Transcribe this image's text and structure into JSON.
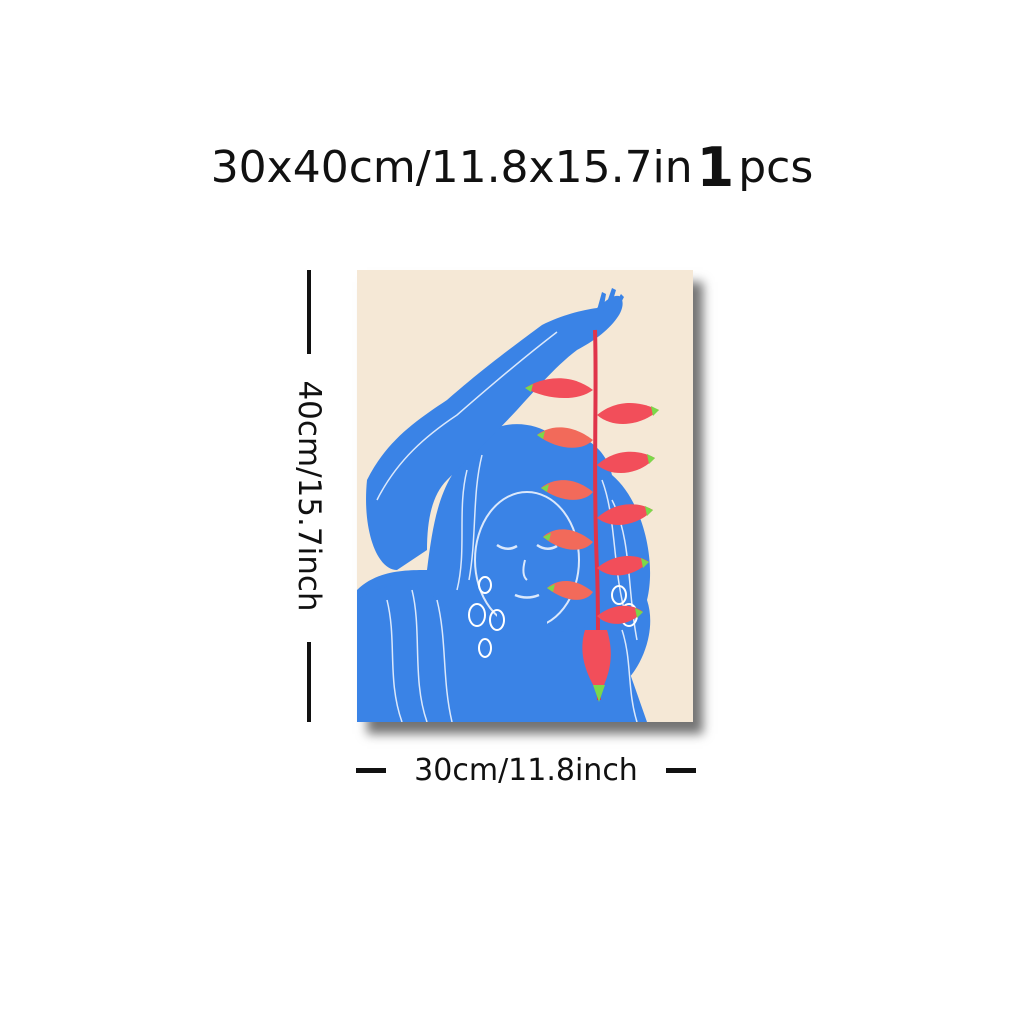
{
  "headline": {
    "size_text": "30x40cm/11.8x15.7in",
    "quantity_number": "1",
    "quantity_unit": "pcs"
  },
  "dimensions": {
    "height_label": "40cm/15.7inch",
    "width_label": "30cm/11.8inch"
  },
  "artwork": {
    "background_color": "#f5e8d6",
    "figure_color": "#3a83e6",
    "flower_color": "#f24e5a",
    "flower_tip_color": "#7bd84a"
  }
}
